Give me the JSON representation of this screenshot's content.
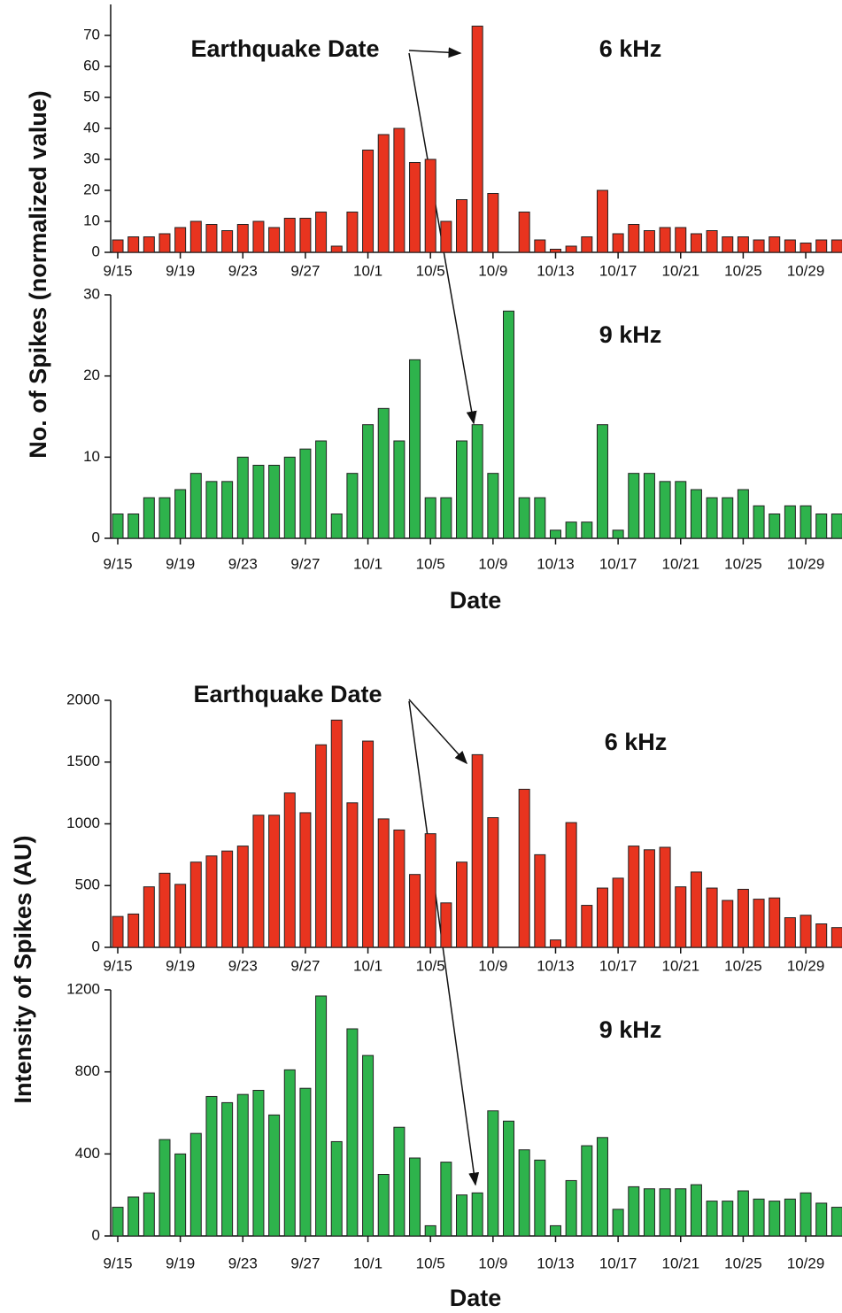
{
  "chart_data": [
    {
      "type": "bar",
      "label": "6 kHz",
      "ylabel": "No. of Spikes (normalized value)",
      "annotation": "Earthquake Date",
      "color": "#e8341f",
      "categories": [
        "9/15",
        null,
        null,
        null,
        "9/19",
        null,
        null,
        null,
        "9/23",
        null,
        null,
        null,
        "9/27",
        null,
        null,
        null,
        "10/1",
        null,
        null,
        null,
        "10/5",
        null,
        null,
        null,
        "10/9",
        null,
        null,
        null,
        "10/13",
        null,
        null,
        null,
        "10/17",
        null,
        null,
        null,
        "10/21",
        null,
        null,
        null,
        "10/25",
        null,
        null,
        null,
        "10/29",
        null,
        null
      ],
      "values": [
        4,
        5,
        5,
        6,
        8,
        10,
        9,
        7,
        9,
        10,
        8,
        11,
        11,
        13,
        2,
        13,
        33,
        38,
        40,
        29,
        30,
        10,
        17,
        73,
        19,
        0,
        13,
        4,
        1,
        2,
        5,
        20,
        6,
        9,
        7,
        8,
        8,
        6,
        7,
        5,
        5,
        4,
        5,
        4,
        3,
        4,
        4
      ],
      "ylim": [
        0,
        80
      ],
      "yticks": [
        0,
        10,
        20,
        30,
        40,
        50,
        60,
        70
      ]
    },
    {
      "type": "bar",
      "label": "9 kHz",
      "xlabel": "Date",
      "color": "#2eb34c",
      "categories": [
        "9/15",
        null,
        null,
        null,
        "9/19",
        null,
        null,
        null,
        "9/23",
        null,
        null,
        null,
        "9/27",
        null,
        null,
        null,
        "10/1",
        null,
        null,
        null,
        "10/5",
        null,
        null,
        null,
        "10/9",
        null,
        null,
        null,
        "10/13",
        null,
        null,
        null,
        "10/17",
        null,
        null,
        null,
        "10/21",
        null,
        null,
        null,
        "10/25",
        null,
        null,
        null,
        "10/29",
        null,
        null
      ],
      "values": [
        3,
        3,
        5,
        5,
        6,
        8,
        7,
        7,
        10,
        9,
        9,
        10,
        11,
        12,
        3,
        8,
        14,
        16,
        12,
        22,
        5,
        5,
        12,
        14,
        8,
        28,
        5,
        5,
        1,
        2,
        2,
        14,
        1,
        8,
        8,
        7,
        7,
        6,
        5,
        5,
        6,
        4,
        3,
        4,
        4,
        3,
        3
      ],
      "ylim": [
        0,
        30
      ],
      "yticks": [
        0,
        10,
        20,
        30
      ]
    },
    {
      "type": "bar",
      "label": "6 kHz",
      "ylabel": "Intensity of Spikes (AU)",
      "annotation": "Earthquake Date",
      "color": "#e8341f",
      "categories": [
        "9/15",
        null,
        null,
        null,
        "9/19",
        null,
        null,
        null,
        "9/23",
        null,
        null,
        null,
        "9/27",
        null,
        null,
        null,
        "10/1",
        null,
        null,
        null,
        "10/5",
        null,
        null,
        null,
        "10/9",
        null,
        null,
        null,
        "10/13",
        null,
        null,
        null,
        "10/17",
        null,
        null,
        null,
        "10/21",
        null,
        null,
        null,
        "10/25",
        null,
        null,
        null,
        "10/29",
        null,
        null
      ],
      "values": [
        250,
        270,
        490,
        600,
        510,
        690,
        740,
        780,
        820,
        1070,
        1070,
        1250,
        1090,
        1640,
        1840,
        1170,
        1670,
        1040,
        950,
        590,
        920,
        360,
        690,
        1560,
        1050,
        0,
        1280,
        750,
        60,
        1010,
        340,
        480,
        560,
        820,
        790,
        810,
        490,
        610,
        480,
        380,
        470,
        390,
        400,
        240,
        260,
        190,
        160
      ],
      "ylim": [
        0,
        2000
      ],
      "yticks": [
        0,
        500,
        1000,
        1500,
        2000
      ]
    },
    {
      "type": "bar",
      "label": "9 kHz",
      "xlabel": "Date",
      "color": "#2eb34c",
      "categories": [
        "9/15",
        null,
        null,
        null,
        "9/19",
        null,
        null,
        null,
        "9/23",
        null,
        null,
        null,
        "9/27",
        null,
        null,
        null,
        "10/1",
        null,
        null,
        null,
        "10/5",
        null,
        null,
        null,
        "10/9",
        null,
        null,
        null,
        "10/13",
        null,
        null,
        null,
        "10/17",
        null,
        null,
        null,
        "10/21",
        null,
        null,
        null,
        "10/25",
        null,
        null,
        null,
        "10/29",
        null,
        null
      ],
      "values": [
        140,
        190,
        210,
        470,
        400,
        500,
        680,
        650,
        690,
        710,
        590,
        810,
        720,
        1170,
        460,
        1010,
        880,
        300,
        530,
        380,
        50,
        360,
        200,
        210,
        610,
        560,
        420,
        370,
        50,
        270,
        440,
        480,
        130,
        240,
        230,
        230,
        230,
        250,
        170,
        170,
        220,
        180,
        170,
        180,
        210,
        160,
        140
      ],
      "ylim": [
        0,
        1200
      ],
      "yticks": [
        0,
        400,
        800,
        1200
      ]
    }
  ]
}
